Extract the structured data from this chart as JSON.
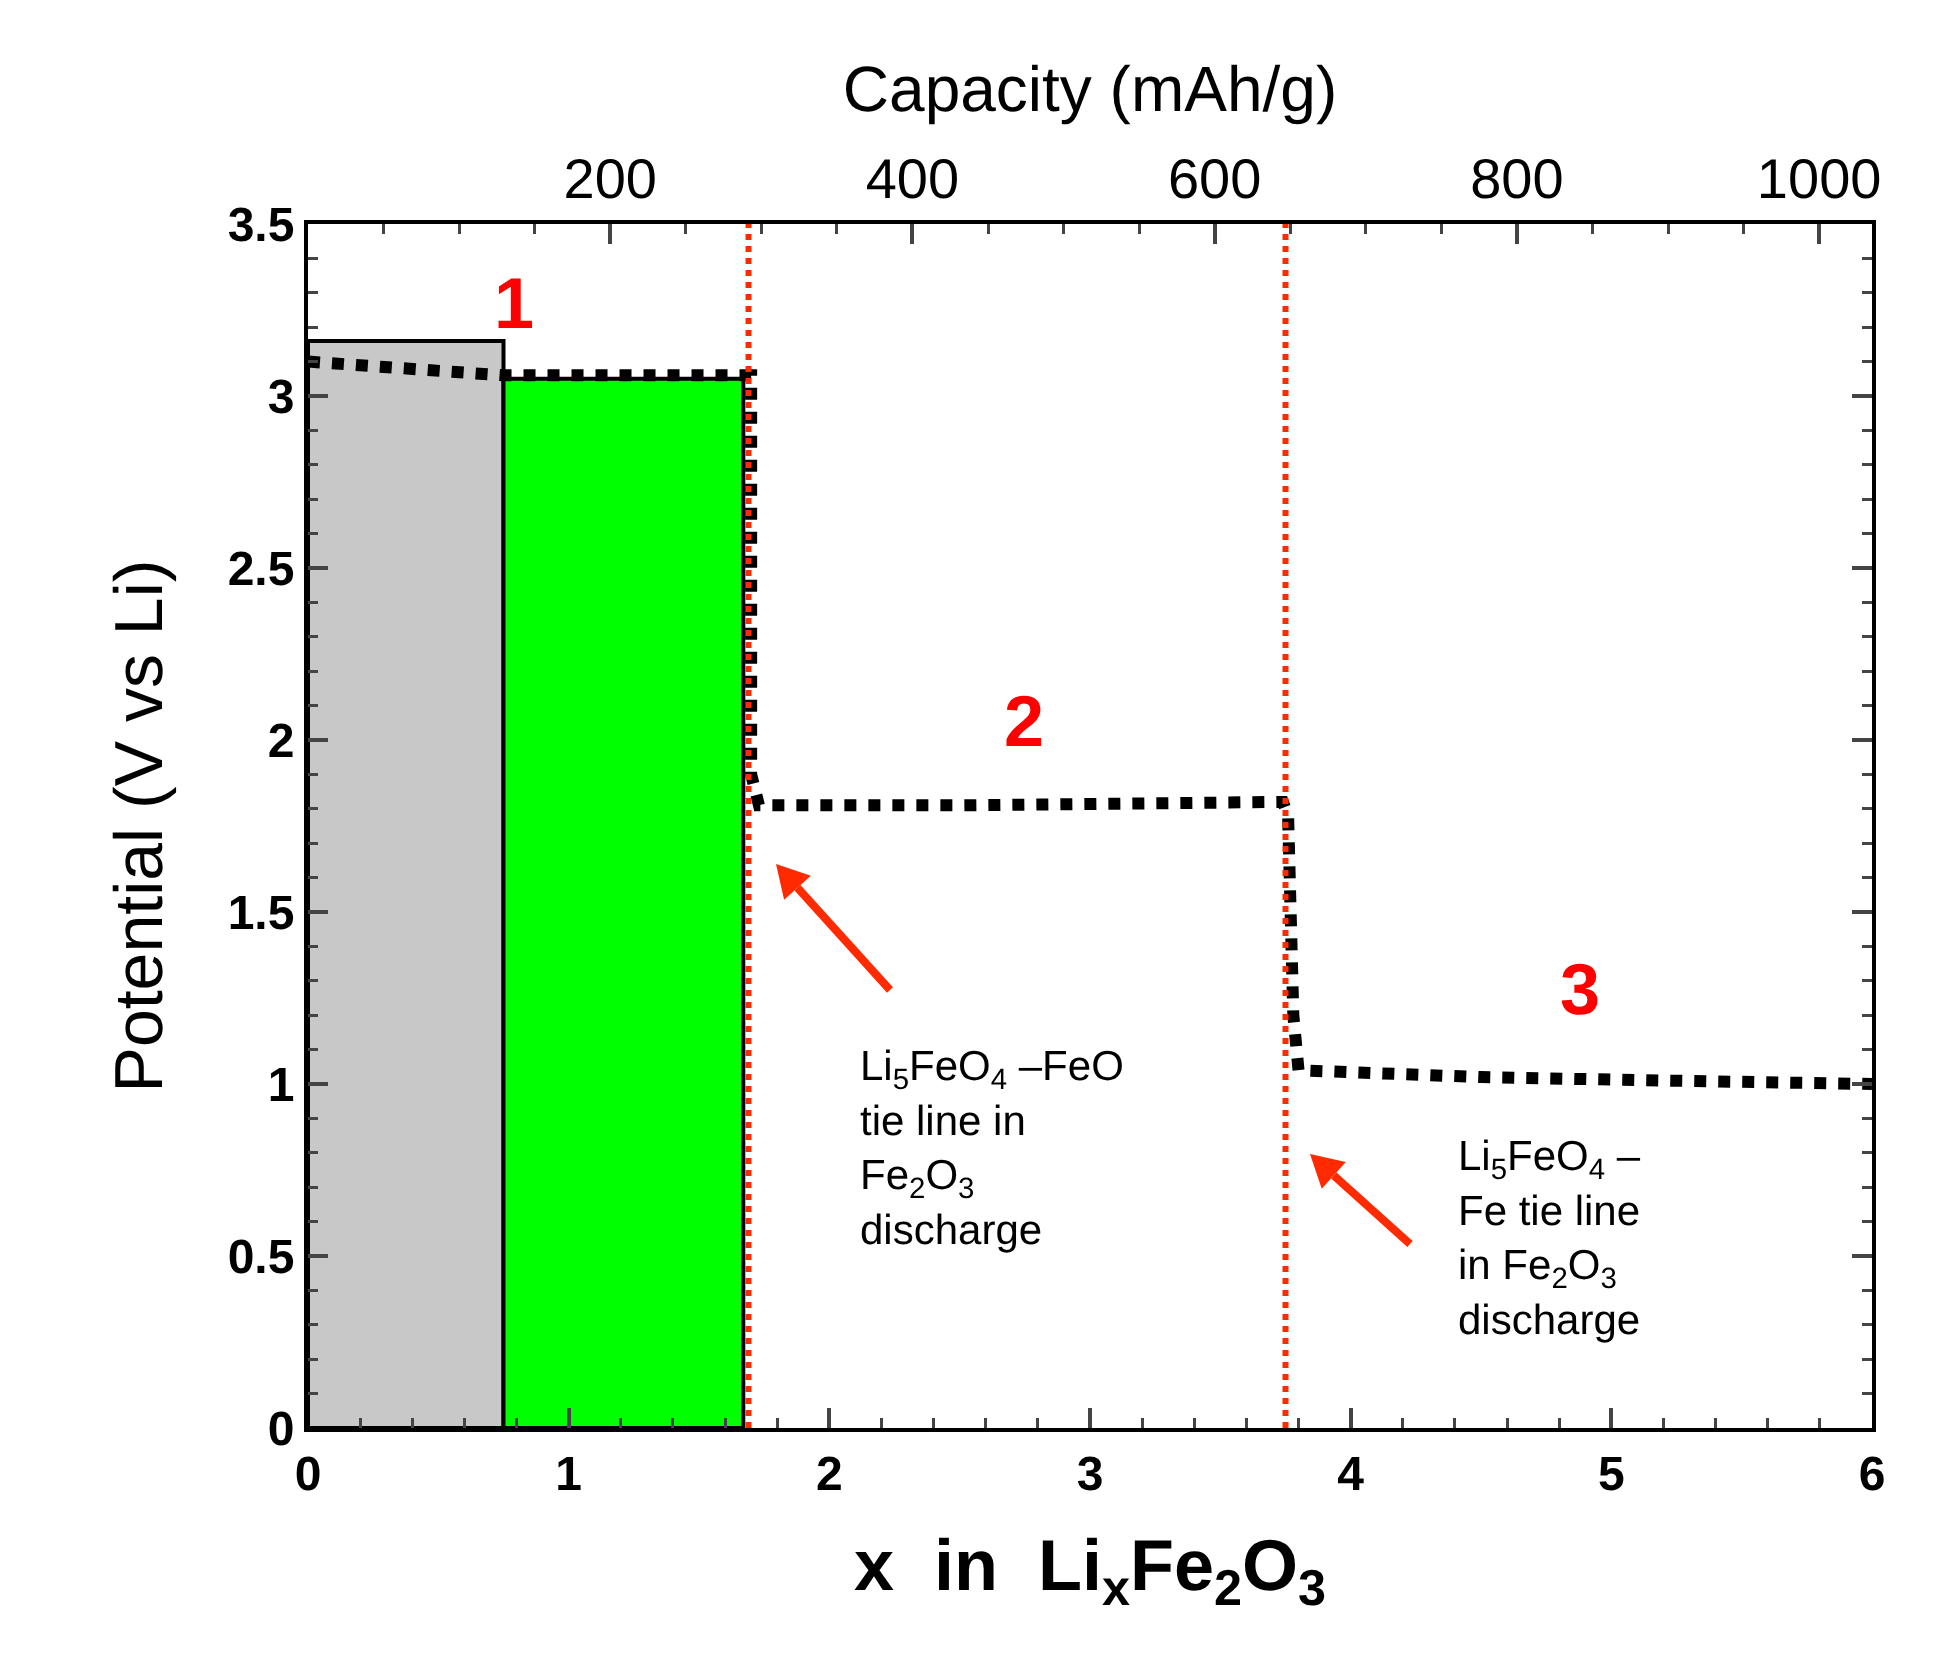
{
  "chart_data": {
    "type": "histogram",
    "xlabel": "x  in  Li$_{x}$Fe$_{2}$O$_{3}$",
    "ylabel": "Potential (V vs Li)",
    "x2label": "Capacity (mAh/g)",
    "bins": [
      0,
      0.75,
      1.67
    ],
    "values": [
      3.16,
      3.05
    ],
    "colors": [
      "#c8c8c8",
      "#00ff00"
    ],
    "series": [
      {
        "type": "line",
        "color": "#000000",
        "line_style": "dotted",
        "marker": "none",
        "x": [
          0,
          0.75,
          1.7,
          1.7,
          1.73,
          2.5,
          3.74,
          3.76,
          3.78,
          3.8,
          4.5,
          5.2,
          6
        ],
        "values": [
          3.1,
          3.06,
          3.06,
          1.9,
          1.81,
          1.81,
          1.82,
          1.78,
          1.2,
          1.04,
          1.02,
          1.01,
          1.0
        ]
      }
    ],
    "xlim": [
      0,
      6
    ],
    "xticks": [
      0,
      1,
      2,
      3,
      4,
      5,
      6
    ],
    "ylim": [
      0,
      3.5
    ],
    "yticks": [
      0,
      0.5,
      1,
      1.5,
      2,
      2.5,
      3,
      3.5
    ],
    "x2lim": [
      0,
      1035
    ],
    "x2ticks": [
      200,
      400,
      600,
      800,
      1000
    ],
    "ref_lines": [
      {
        "axis": "x",
        "value": 1.69,
        "color": "#ff2a00",
        "line_style": "dotted"
      },
      {
        "axis": "x",
        "value": 3.75,
        "color": "#ff2a00",
        "line_style": "dotted"
      }
    ],
    "annotations": [
      "1",
      "2",
      "3",
      "Li$_{5}$FeO$_{4}$ –FeO\ntie line in\nFe$_{2}$O$_{3}$\ndischarge",
      "Li$_{5}$FeO$_{4}$ –\nFe tie line\nin Fe$_{2}$O$_{3}$\ndischarge"
    ],
    "grid": false
  }
}
